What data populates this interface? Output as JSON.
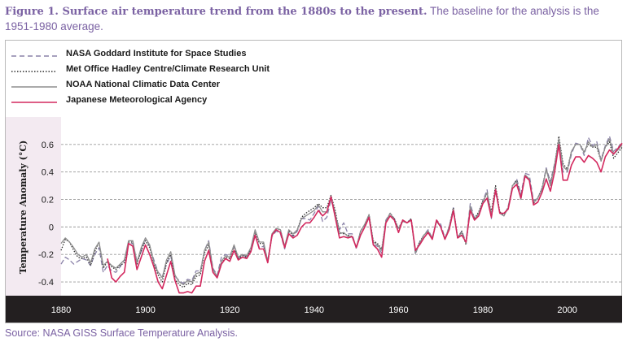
{
  "caption": {
    "figure_label": "Figure 1. Surface air temperature trend from the 1880s to the present.",
    "text": "The baseline for the analysis is the 1951-1980 average."
  },
  "source": "Source: NASA GISS Surface Temperature Analysis.",
  "chart_data": {
    "type": "line",
    "title": "",
    "xlabel": "",
    "ylabel": "Temperature Anomaly (°C)",
    "xlim": [
      1880,
      2013
    ],
    "ylim": [
      -0.5,
      0.8
    ],
    "xticks": [
      1880,
      1900,
      1920,
      1940,
      1960,
      1980,
      2000
    ],
    "yticks": [
      -0.4,
      -0.2,
      0,
      0.2,
      0.4,
      0.6
    ],
    "ytick_labels": [
      "-0.4",
      "-0.2",
      "0",
      "0.2",
      "0.4",
      "0.6"
    ],
    "grid": "horizontal dashed",
    "legend_position": "top-left",
    "colors": {
      "background": "#ffffff",
      "axis_band": "#231f20",
      "ylabel_band": "#f3eaf1"
    },
    "x": [
      1880,
      1881,
      1882,
      1883,
      1884,
      1885,
      1886,
      1887,
      1888,
      1889,
      1890,
      1891,
      1892,
      1893,
      1894,
      1895,
      1896,
      1897,
      1898,
      1899,
      1900,
      1901,
      1902,
      1903,
      1904,
      1905,
      1906,
      1907,
      1908,
      1909,
      1910,
      1911,
      1912,
      1913,
      1914,
      1915,
      1916,
      1917,
      1918,
      1919,
      1920,
      1921,
      1922,
      1923,
      1924,
      1925,
      1926,
      1927,
      1928,
      1929,
      1930,
      1931,
      1932,
      1933,
      1934,
      1935,
      1936,
      1937,
      1938,
      1939,
      1940,
      1941,
      1942,
      1943,
      1944,
      1945,
      1946,
      1947,
      1948,
      1949,
      1950,
      1951,
      1952,
      1953,
      1954,
      1955,
      1956,
      1957,
      1958,
      1959,
      1960,
      1961,
      1962,
      1963,
      1964,
      1965,
      1966,
      1967,
      1968,
      1969,
      1970,
      1971,
      1972,
      1973,
      1974,
      1975,
      1976,
      1977,
      1978,
      1979,
      1980,
      1981,
      1982,
      1983,
      1984,
      1985,
      1986,
      1987,
      1988,
      1989,
      1990,
      1991,
      1992,
      1993,
      1994,
      1995,
      1996,
      1997,
      1998,
      1999,
      2000,
      2001,
      2002,
      2003,
      2004,
      2005,
      2006,
      2007,
      2008,
      2009,
      2010,
      2011,
      2012,
      2013
    ],
    "series": [
      {
        "name": "NASA Goddard Institute for Space Studies",
        "color": "#8a82a8",
        "style": "dashed",
        "values": [
          -0.27,
          -0.22,
          -0.24,
          -0.27,
          -0.25,
          -0.23,
          -0.24,
          -0.28,
          -0.2,
          -0.15,
          -0.33,
          -0.28,
          -0.32,
          -0.33,
          -0.29,
          -0.24,
          -0.12,
          -0.12,
          -0.25,
          -0.18,
          -0.08,
          -0.14,
          -0.24,
          -0.33,
          -0.36,
          -0.27,
          -0.21,
          -0.36,
          -0.39,
          -0.41,
          -0.38,
          -0.39,
          -0.32,
          -0.32,
          -0.17,
          -0.1,
          -0.3,
          -0.35,
          -0.22,
          -0.2,
          -0.21,
          -0.14,
          -0.23,
          -0.2,
          -0.22,
          -0.17,
          -0.06,
          -0.15,
          -0.14,
          -0.24,
          -0.07,
          -0.03,
          -0.05,
          -0.16,
          -0.04,
          -0.07,
          -0.03,
          0.06,
          0.06,
          0.05,
          0.1,
          0.15,
          0.04,
          0.07,
          0.2,
          0.09,
          -0.02,
          0.03,
          -0.05,
          -0.05,
          -0.16,
          -0.03,
          0.01,
          0.09,
          -0.13,
          -0.14,
          -0.19,
          0.05,
          0.1,
          0.06,
          -0.02,
          0.05,
          0.03,
          0.06,
          -0.2,
          -0.11,
          -0.06,
          -0.02,
          -0.08,
          0.05,
          0.02,
          -0.08,
          0.0,
          0.14,
          -0.08,
          -0.03,
          -0.11,
          0.17,
          0.06,
          0.1,
          0.19,
          0.27,
          0.06,
          0.26,
          0.1,
          0.08,
          0.15,
          0.29,
          0.35,
          0.24,
          0.39,
          0.38,
          0.19,
          0.21,
          0.28,
          0.43,
          0.33,
          0.46,
          0.61,
          0.4,
          0.4,
          0.53,
          0.61,
          0.6,
          0.52,
          0.65,
          0.59,
          0.62,
          0.49,
          0.59,
          0.66,
          0.55,
          0.58,
          0.61
        ]
      },
      {
        "name": "Met Office Hadley Centre/Climate Research Unit",
        "color": "#2b2b2b",
        "style": "dotted",
        "values": [
          -0.17,
          -0.09,
          -0.11,
          -0.17,
          -0.22,
          -0.23,
          -0.22,
          -0.28,
          -0.18,
          -0.11,
          -0.3,
          -0.25,
          -0.29,
          -0.31,
          -0.28,
          -0.26,
          -0.11,
          -0.11,
          -0.27,
          -0.17,
          -0.1,
          -0.15,
          -0.27,
          -0.35,
          -0.4,
          -0.26,
          -0.2,
          -0.38,
          -0.42,
          -0.44,
          -0.41,
          -0.42,
          -0.36,
          -0.35,
          -0.19,
          -0.13,
          -0.33,
          -0.37,
          -0.27,
          -0.22,
          -0.23,
          -0.14,
          -0.23,
          -0.21,
          -0.22,
          -0.16,
          -0.04,
          -0.12,
          -0.12,
          -0.26,
          -0.06,
          -0.01,
          -0.02,
          -0.15,
          -0.03,
          -0.06,
          -0.02,
          0.07,
          0.1,
          0.12,
          0.14,
          0.17,
          0.14,
          0.14,
          0.23,
          0.12,
          -0.04,
          -0.05,
          -0.06,
          -0.07,
          -0.15,
          -0.03,
          0.02,
          0.09,
          -0.1,
          -0.12,
          -0.16,
          0.04,
          0.1,
          0.06,
          -0.01,
          0.05,
          0.03,
          0.06,
          -0.18,
          -0.11,
          -0.06,
          -0.03,
          -0.09,
          0.05,
          0.0,
          -0.09,
          0.0,
          0.14,
          -0.08,
          -0.03,
          -0.13,
          0.14,
          0.06,
          0.11,
          0.19,
          0.24,
          0.11,
          0.3,
          0.11,
          0.09,
          0.14,
          0.3,
          0.34,
          0.21,
          0.38,
          0.34,
          0.17,
          0.21,
          0.28,
          0.42,
          0.31,
          0.45,
          0.66,
          0.46,
          0.42,
          0.55,
          0.6,
          0.6,
          0.55,
          0.6,
          0.58,
          0.58,
          0.48,
          0.58,
          0.62,
          0.5,
          0.54,
          0.58
        ]
      },
      {
        "name": "NOAA National Climatic Data Center",
        "color": "#8e8e8e",
        "style": "solid",
        "values": [
          -0.12,
          -0.08,
          -0.11,
          -0.15,
          -0.2,
          -0.22,
          -0.2,
          -0.26,
          -0.16,
          -0.11,
          -0.28,
          -0.25,
          -0.28,
          -0.3,
          -0.27,
          -0.24,
          -0.1,
          -0.1,
          -0.26,
          -0.15,
          -0.08,
          -0.13,
          -0.26,
          -0.33,
          -0.37,
          -0.24,
          -0.18,
          -0.35,
          -0.4,
          -0.42,
          -0.39,
          -0.4,
          -0.34,
          -0.33,
          -0.17,
          -0.11,
          -0.31,
          -0.36,
          -0.25,
          -0.21,
          -0.22,
          -0.13,
          -0.22,
          -0.2,
          -0.21,
          -0.15,
          -0.02,
          -0.11,
          -0.11,
          -0.25,
          -0.05,
          -0.01,
          -0.02,
          -0.14,
          -0.02,
          -0.05,
          -0.02,
          0.06,
          0.08,
          0.1,
          0.12,
          0.16,
          0.11,
          0.11,
          0.22,
          0.1,
          -0.05,
          -0.04,
          -0.07,
          -0.07,
          -0.15,
          -0.03,
          0.02,
          0.09,
          -0.11,
          -0.13,
          -0.17,
          0.04,
          0.1,
          0.05,
          -0.01,
          0.04,
          0.03,
          0.05,
          -0.19,
          -0.12,
          -0.06,
          -0.03,
          -0.08,
          0.04,
          0.0,
          -0.09,
          0.0,
          0.13,
          -0.08,
          -0.04,
          -0.12,
          0.15,
          0.05,
          0.1,
          0.18,
          0.25,
          0.09,
          0.28,
          0.1,
          0.08,
          0.14,
          0.3,
          0.33,
          0.2,
          0.38,
          0.35,
          0.18,
          0.21,
          0.27,
          0.42,
          0.3,
          0.45,
          0.64,
          0.44,
          0.41,
          0.55,
          0.6,
          0.6,
          0.54,
          0.62,
          0.58,
          0.6,
          0.48,
          0.58,
          0.64,
          0.53,
          0.56,
          0.6
        ]
      },
      {
        "name": "Japanese Meteorological Agency",
        "color": "#d3285e",
        "style": "solid",
        "values": [
          null,
          null,
          null,
          null,
          null,
          null,
          null,
          null,
          null,
          null,
          null,
          -0.23,
          -0.37,
          -0.4,
          -0.36,
          -0.33,
          -0.12,
          -0.14,
          -0.31,
          -0.22,
          -0.13,
          -0.2,
          -0.29,
          -0.4,
          -0.45,
          -0.35,
          -0.25,
          -0.39,
          -0.48,
          -0.48,
          -0.47,
          -0.48,
          -0.43,
          -0.43,
          -0.25,
          -0.17,
          -0.33,
          -0.37,
          -0.27,
          -0.23,
          -0.25,
          -0.17,
          -0.24,
          -0.22,
          -0.23,
          -0.18,
          -0.06,
          -0.16,
          -0.16,
          -0.26,
          -0.06,
          -0.02,
          -0.04,
          -0.15,
          -0.05,
          -0.08,
          -0.06,
          0.0,
          0.03,
          0.03,
          0.07,
          0.12,
          0.08,
          0.11,
          0.22,
          0.07,
          -0.08,
          -0.07,
          -0.08,
          -0.07,
          -0.15,
          -0.06,
          0.0,
          0.07,
          -0.13,
          -0.16,
          -0.22,
          0.03,
          0.08,
          0.05,
          -0.04,
          0.05,
          0.03,
          0.05,
          -0.17,
          -0.13,
          -0.08,
          -0.04,
          -0.09,
          0.05,
          0.0,
          -0.09,
          -0.02,
          0.12,
          -0.08,
          -0.06,
          -0.11,
          0.12,
          0.05,
          0.08,
          0.17,
          0.21,
          0.07,
          0.27,
          0.1,
          0.1,
          0.13,
          0.28,
          0.31,
          0.21,
          0.37,
          0.34,
          0.16,
          0.18,
          0.25,
          0.35,
          0.26,
          0.4,
          0.6,
          0.34,
          0.34,
          0.45,
          0.51,
          0.51,
          0.47,
          0.52,
          0.5,
          0.47,
          0.4,
          0.51,
          0.56,
          0.53,
          0.57,
          0.61
        ]
      }
    ]
  }
}
